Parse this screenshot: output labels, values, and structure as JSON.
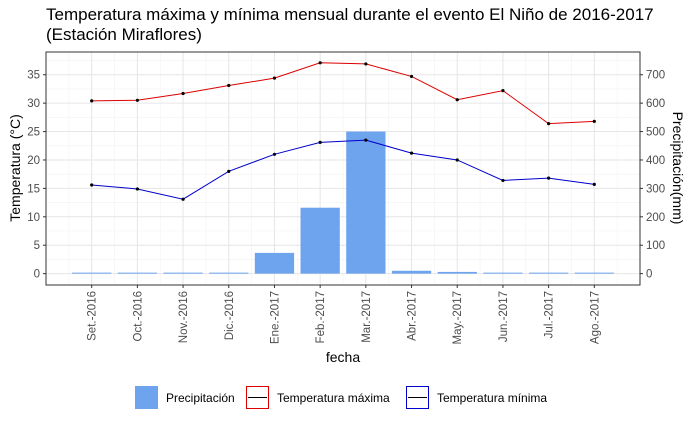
{
  "title_line1": "Temperatura máxima y mínima mensual durante el evento El Niño de 2016-2017",
  "title_line2": "(Estación Miraflores)",
  "chart_data": {
    "type": "bar",
    "categories": [
      "Set.-2016",
      "Oct.-2016",
      "Nov.-2016",
      "Dic.-2016",
      "Ene.-2017",
      "Feb.-2017",
      "Mar.-2017",
      "Abr.-2017",
      "May.-2017",
      "Jun.-2017",
      "Jul.-2017",
      "Ago.-2017"
    ],
    "xlabel": "fecha",
    "ylabel": "Temperatura (°C)",
    "y2label": "Precipitación(mm)",
    "ylim": [
      -2,
      39
    ],
    "y2lim": [
      -40,
      780
    ],
    "yticks": [
      0,
      5,
      10,
      15,
      20,
      25,
      30,
      35
    ],
    "y2ticks": [
      0,
      100,
      200,
      300,
      400,
      500,
      600,
      700
    ],
    "grid": true,
    "legend_position": "bottom",
    "series": [
      {
        "name": "Precipitación",
        "kind": "bar",
        "axis": "right",
        "color": "#6ea4ee",
        "values": [
          1,
          1,
          1,
          1,
          73,
          232,
          500,
          10,
          6,
          1,
          1,
          1
        ]
      },
      {
        "name": "Temperatura máxima",
        "kind": "line",
        "axis": "left",
        "color": "#dd0000",
        "values": [
          30.4,
          30.5,
          31.7,
          33.1,
          34.4,
          37.1,
          36.9,
          34.7,
          30.6,
          32.2,
          26.4,
          26.8
        ]
      },
      {
        "name": "Temperatura mínima",
        "kind": "line",
        "axis": "left",
        "color": "#0000cc",
        "values": [
          15.6,
          14.9,
          13.1,
          18.0,
          21.0,
          23.1,
          23.5,
          21.2,
          20.0,
          16.4,
          16.8,
          15.7
        ]
      }
    ]
  }
}
